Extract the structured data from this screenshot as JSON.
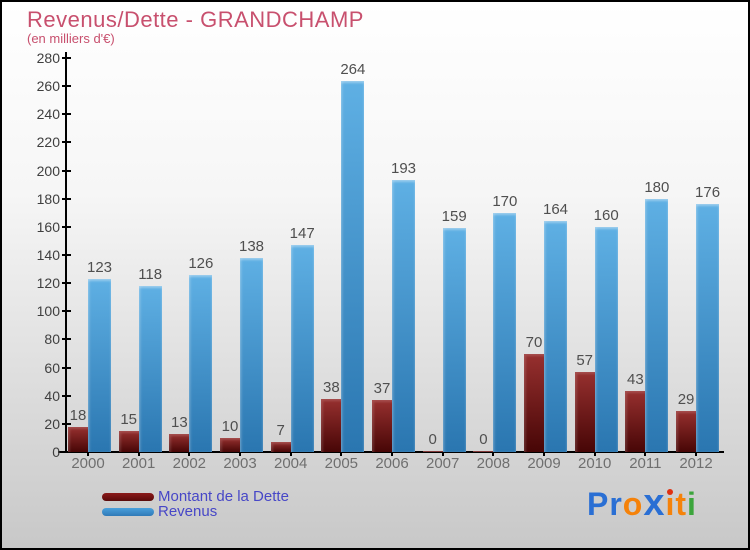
{
  "title": "Revenus/Dette - GRANDCHAMP",
  "subtitle": "(en milliers d'€)",
  "colors": {
    "title": "#c8506e",
    "background_top": "#ffffff",
    "background_bottom": "#c8c8c8",
    "axis": "#000000",
    "ytick_label": "#3f3f3f",
    "value_label": "#4f4f4f",
    "year_label": "#6f6f6f",
    "dette_top": "#97302f",
    "dette_bottom": "#470606",
    "revenus_top": "#5fb0e4",
    "revenus_bottom": "#2a76b0",
    "legend_text": "#4747c7"
  },
  "chart_data": {
    "type": "bar",
    "title": "Revenus/Dette - GRANDCHAMP",
    "subtitle": "(en milliers d'€)",
    "categories": [
      "2000",
      "2001",
      "2002",
      "2003",
      "2004",
      "2005",
      "2006",
      "2007",
      "2008",
      "2009",
      "2010",
      "2011",
      "2012"
    ],
    "series": [
      {
        "name": "Montant de la Dette",
        "color_top": "#97302f",
        "color_bottom": "#470606",
        "values": [
          18,
          15,
          13,
          10,
          7,
          38,
          37,
          0,
          0,
          70,
          57,
          43,
          29
        ]
      },
      {
        "name": "Revenus",
        "color_top": "#5fb0e4",
        "color_bottom": "#2a76b0",
        "values": [
          123,
          118,
          126,
          138,
          147,
          264,
          193,
          159,
          170,
          164,
          160,
          180,
          176
        ]
      }
    ],
    "ylim": [
      0,
      280
    ],
    "ytick_step": 20,
    "grid": false,
    "bar_value_labels": true,
    "legend_position": "bottom-left"
  },
  "legend": {
    "items": [
      {
        "label": "Montant de la Dette",
        "color_top": "#8b1a1a",
        "color_bottom": "#5a0a0a"
      },
      {
        "label": "Revenus",
        "color_top": "#4aa0dc",
        "color_bottom": "#2f7ab8"
      }
    ]
  },
  "logo": {
    "text": "Proxiti",
    "letters": [
      {
        "ch": "P",
        "color": "#2a6fd4"
      },
      {
        "ch": "r",
        "color": "#2a6fd4"
      },
      {
        "ch": "o",
        "color": "#f5820a"
      },
      {
        "ch": "x",
        "color": "#2a6fd4",
        "big": true
      },
      {
        "ch": "i",
        "color": "#f5820a",
        "dot": "#e03010"
      },
      {
        "ch": "t",
        "color": "#f5820a"
      },
      {
        "ch": "i",
        "color": "#3ca53c"
      }
    ]
  }
}
